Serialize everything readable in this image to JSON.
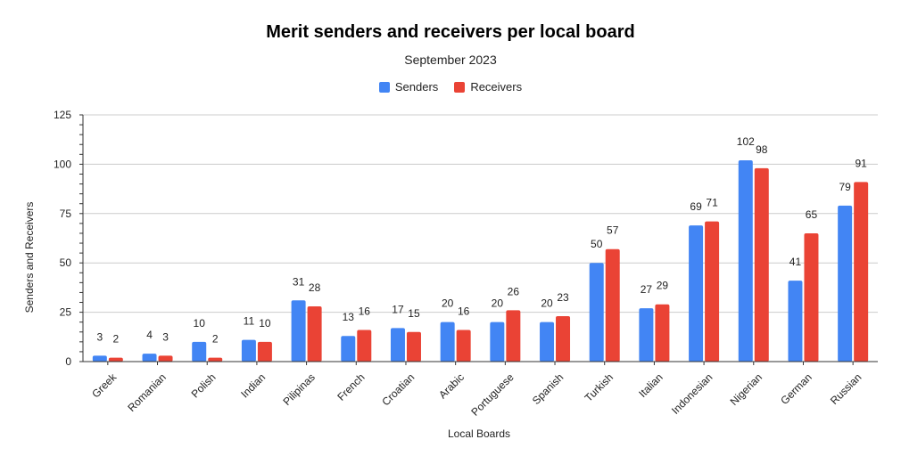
{
  "chart_data": {
    "type": "bar",
    "title": "Merit senders and receivers per local board",
    "subtitle": "September 2023",
    "xlabel": "Local Boards",
    "ylabel": "Senders and Receivers",
    "ylim": [
      0,
      125
    ],
    "yticks": [
      0,
      25,
      50,
      75,
      100,
      125
    ],
    "grid": true,
    "legend_position": "top",
    "categories": [
      "Greek",
      "Romanian",
      "Polish",
      "Indian",
      "Pilipinas",
      "French",
      "Croatian",
      "Arabic",
      "Portuguese",
      "Spanish",
      "Turkish",
      "Italian",
      "Indonesian",
      "Nigerian",
      "German",
      "Russian"
    ],
    "series": [
      {
        "name": "Senders",
        "color": "#4285f4",
        "values": [
          3,
          4,
          10,
          11,
          31,
          13,
          17,
          20,
          20,
          20,
          50,
          27,
          69,
          102,
          41,
          79
        ]
      },
      {
        "name": "Receivers",
        "color": "#ea4335",
        "values": [
          2,
          3,
          2,
          10,
          28,
          16,
          15,
          16,
          26,
          23,
          57,
          29,
          71,
          98,
          65,
          91
        ]
      }
    ]
  }
}
